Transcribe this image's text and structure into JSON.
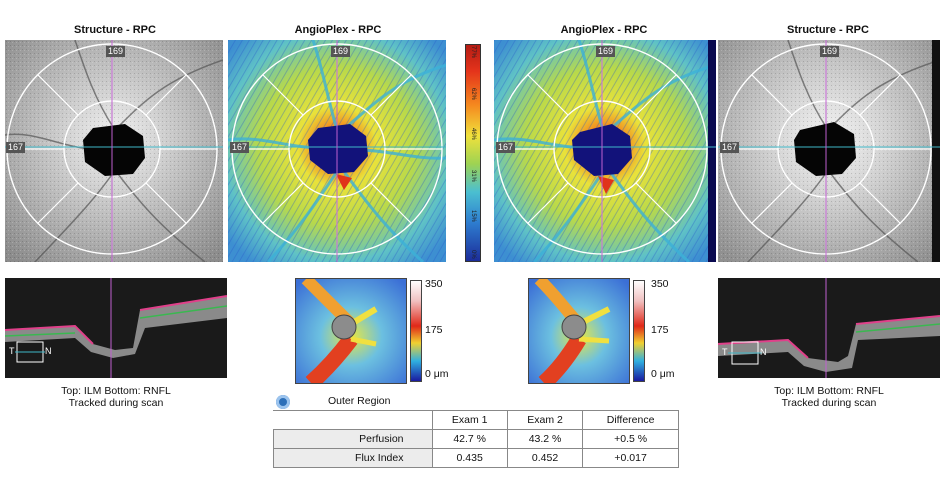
{
  "panels": {
    "structure_left": {
      "title": "Structure - RPC",
      "top_tag": "169",
      "left_tag": "167"
    },
    "angio_left": {
      "title": "AngioPlex - RPC",
      "top_tag": "169",
      "left_tag": "167"
    },
    "angio_right": {
      "title": "AngioPlex - RPC",
      "top_tag": "169",
      "left_tag": "167"
    },
    "structure_right": {
      "title": "Structure - RPC",
      "top_tag": "169",
      "left_tag": "167"
    }
  },
  "color_scale": {
    "labels": [
      "77%",
      "62%",
      "46%",
      "31%",
      "15%",
      "0%"
    ]
  },
  "bscan_left": {
    "caption_line1": "Top: ILM  Bottom: RNFL",
    "caption_line2": "Tracked during scan",
    "t_label": "T",
    "n_label": "N"
  },
  "bscan_right": {
    "caption_line1": "Top: ILM  Bottom: RNFL",
    "caption_line2": "Tracked during scan",
    "t_label": "T",
    "n_label": "N"
  },
  "flux_left": {
    "max": "350",
    "mid": "175",
    "min": "0 μm"
  },
  "flux_right": {
    "max": "350",
    "mid": "175",
    "min": "0 μm"
  },
  "table": {
    "region_label": "Outer Region",
    "headers": [
      "",
      "Exam 1",
      "Exam 2",
      "Difference"
    ],
    "rows": [
      {
        "label": "Perfusion",
        "exam1": "42.7 %",
        "exam2": "43.2 %",
        "diff": "+0.5 %"
      },
      {
        "label": "Flux Index",
        "exam1": "0.435",
        "exam2": "0.452",
        "diff": "+0.017"
      }
    ]
  },
  "colors": {
    "crosshair_h": "#3fb8c8",
    "crosshair_v": "#c060d0",
    "accent_icon": "#2d6fb8"
  },
  "icons": {
    "region_toggle": "target-circle-icon"
  }
}
